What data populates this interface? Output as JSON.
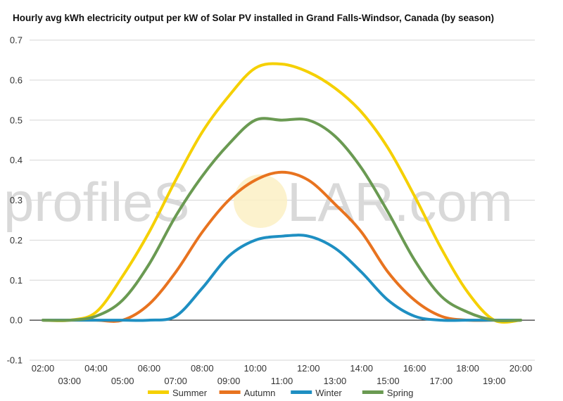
{
  "chart_data": {
    "type": "line",
    "title": "Hourly avg kWh electricity output per kW of Solar PV installed in Grand Falls-Windsor, Canada (by season)",
    "xlabel": "",
    "ylabel": "",
    "ylim": [
      -0.1,
      0.7
    ],
    "yticks": [
      "-0.1",
      "0.0",
      "0.1",
      "0.2",
      "0.3",
      "0.4",
      "0.5",
      "0.6",
      "0.7"
    ],
    "x": [
      "02:00",
      "03:00",
      "04:00",
      "05:00",
      "06:00",
      "07:00",
      "08:00",
      "09:00",
      "10:00",
      "11:00",
      "12:00",
      "13:00",
      "14:00",
      "15:00",
      "16:00",
      "17:00",
      "18:00",
      "19:00",
      "20:00"
    ],
    "grid": true,
    "legend_position": "bottom",
    "series": [
      {
        "name": "Summer",
        "color": "#f5d000",
        "values": [
          0.0,
          0.0,
          0.02,
          0.11,
          0.22,
          0.35,
          0.47,
          0.56,
          0.63,
          0.64,
          0.62,
          0.58,
          0.52,
          0.43,
          0.31,
          0.18,
          0.07,
          0.0,
          0.0
        ]
      },
      {
        "name": "Autumn",
        "color": "#e8731f",
        "values": [
          0.0,
          0.0,
          0.0,
          0.0,
          0.04,
          0.12,
          0.22,
          0.3,
          0.35,
          0.37,
          0.35,
          0.29,
          0.22,
          0.12,
          0.05,
          0.01,
          0.0,
          0.0,
          0.0
        ]
      },
      {
        "name": "Winter",
        "color": "#1e8fc2",
        "values": [
          0.0,
          0.0,
          0.0,
          0.0,
          0.0,
          0.01,
          0.08,
          0.16,
          0.2,
          0.21,
          0.21,
          0.18,
          0.12,
          0.05,
          0.01,
          0.0,
          0.0,
          0.0,
          0.0
        ]
      },
      {
        "name": "Spring",
        "color": "#6a9a52",
        "values": [
          0.0,
          0.0,
          0.01,
          0.05,
          0.14,
          0.26,
          0.36,
          0.44,
          0.5,
          0.5,
          0.5,
          0.46,
          0.38,
          0.27,
          0.15,
          0.06,
          0.02,
          0.0,
          0.0
        ]
      }
    ]
  },
  "watermark": {
    "text_left": "profileS",
    "text_right": "LAR.com"
  }
}
